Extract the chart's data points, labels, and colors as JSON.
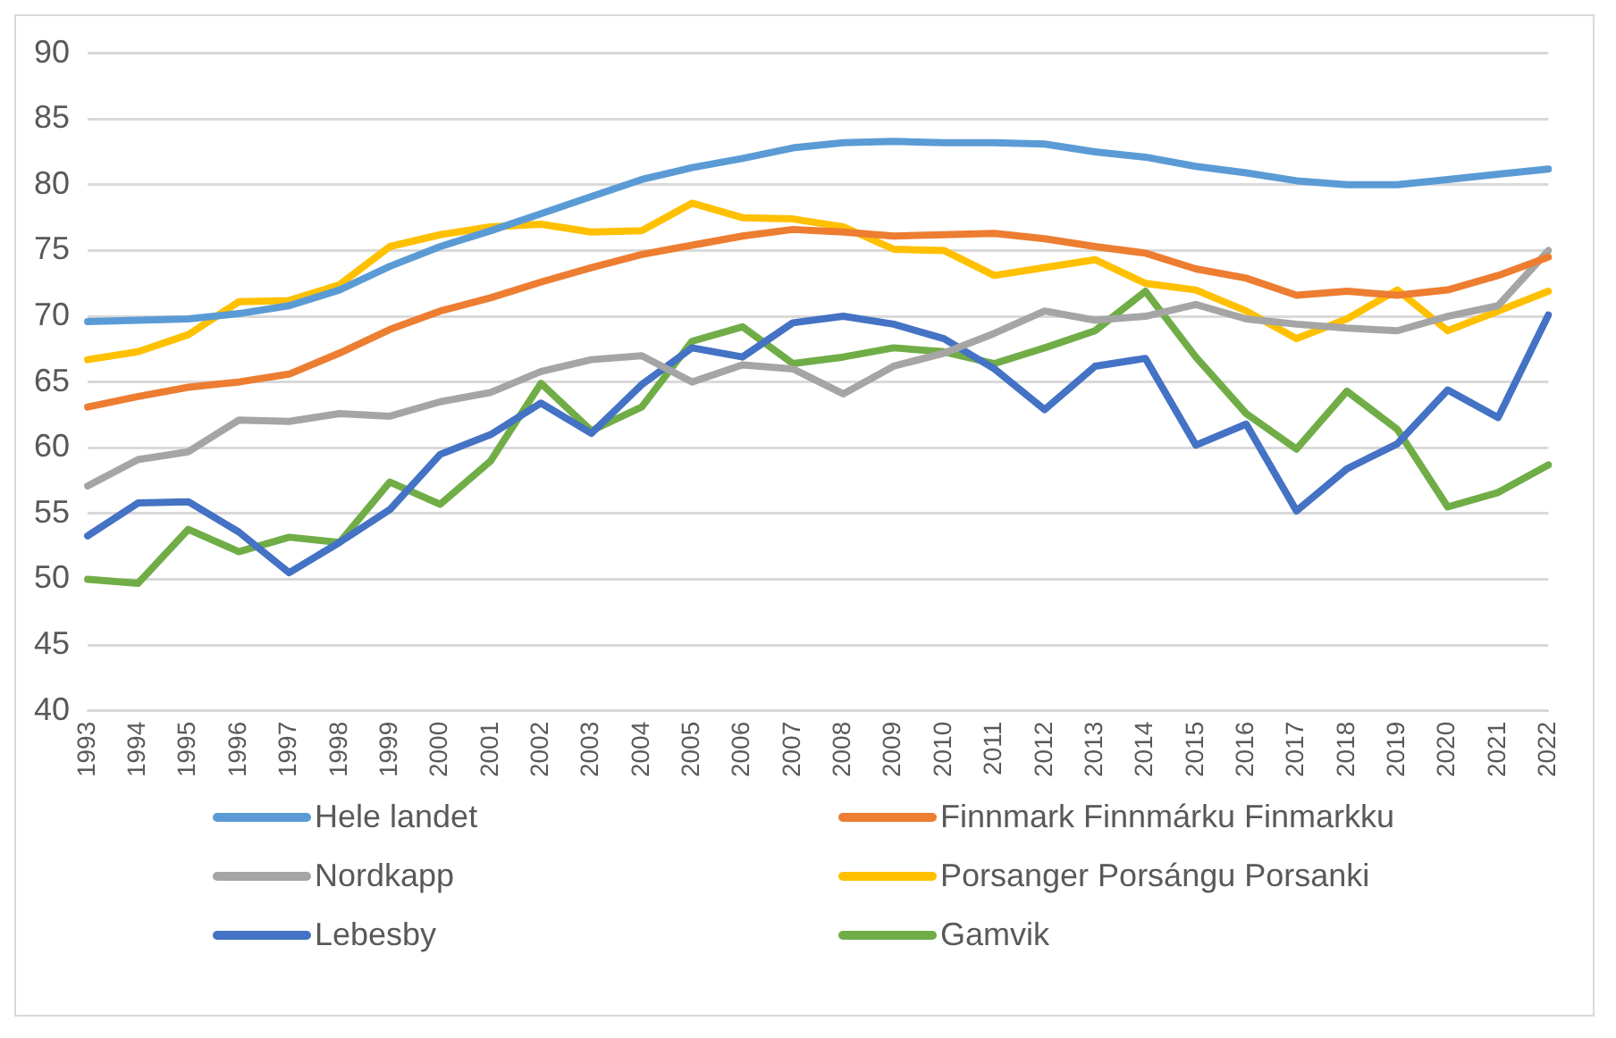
{
  "chart_data": {
    "type": "line",
    "categories": [
      "1993",
      "1994",
      "1995",
      "1996",
      "1997",
      "1998",
      "1999",
      "2000",
      "2001",
      "2002",
      "2003",
      "2004",
      "2005",
      "2006",
      "2007",
      "2008",
      "2009",
      "2010",
      "2011",
      "2012",
      "2013",
      "2014",
      "2015",
      "2016",
      "2017",
      "2018",
      "2019",
      "2020",
      "2021",
      "2022"
    ],
    "series": [
      {
        "name": "Hele landet",
        "color": "#5b9bd5",
        "values": [
          69.6,
          69.7,
          69.8,
          70.2,
          70.8,
          72.0,
          73.8,
          75.3,
          76.5,
          77.8,
          79.1,
          80.4,
          81.3,
          82.0,
          82.8,
          83.2,
          83.3,
          83.2,
          83.2,
          83.1,
          82.5,
          82.1,
          81.4,
          80.9,
          80.3,
          80.0,
          80.0,
          80.4,
          80.8,
          81.2
        ]
      },
      {
        "name": "Finnmark Finnmárku Finmarkku",
        "color": "#ed7d31",
        "values": [
          63.1,
          63.9,
          64.6,
          65.0,
          65.6,
          67.2,
          69.0,
          70.4,
          71.4,
          72.6,
          73.7,
          74.7,
          75.4,
          76.1,
          76.6,
          76.4,
          76.1,
          76.2,
          76.3,
          75.9,
          75.3,
          74.8,
          73.6,
          72.9,
          71.6,
          71.9,
          71.6,
          72.0,
          73.1,
          74.5
        ]
      },
      {
        "name": "Nordkapp",
        "color": "#a5a5a5",
        "values": [
          57.1,
          59.1,
          59.7,
          62.1,
          62.0,
          62.6,
          62.4,
          63.5,
          64.2,
          65.8,
          66.7,
          67.0,
          65.0,
          66.3,
          66.0,
          64.1,
          66.2,
          67.2,
          68.7,
          70.4,
          69.7,
          70.0,
          70.9,
          69.8,
          69.4,
          69.1,
          68.9,
          70.0,
          70.8,
          75.0
        ]
      },
      {
        "name": "Porsanger Porsángu Porsanki",
        "color": "#ffc000",
        "values": [
          66.7,
          67.3,
          68.6,
          71.1,
          71.2,
          72.4,
          75.3,
          76.2,
          76.8,
          77.0,
          76.4,
          76.5,
          78.6,
          77.5,
          77.4,
          76.8,
          75.1,
          75.0,
          73.1,
          73.7,
          74.3,
          72.5,
          72.0,
          70.4,
          68.3,
          69.8,
          72.0,
          68.9,
          70.4,
          71.9
        ]
      },
      {
        "name": "Lebesby",
        "color": "#4472c4",
        "values": [
          53.3,
          55.8,
          55.9,
          53.6,
          50.5,
          52.8,
          55.3,
          59.5,
          61.0,
          63.4,
          61.1,
          64.8,
          67.6,
          66.9,
          69.5,
          70.0,
          69.4,
          68.3,
          66.0,
          62.9,
          66.2,
          66.8,
          60.2,
          61.8,
          55.2,
          58.4,
          60.3,
          64.4,
          62.3,
          70.1
        ]
      },
      {
        "name": "Gamvik",
        "color": "#70ad47",
        "values": [
          50.0,
          49.7,
          53.8,
          52.1,
          53.2,
          52.8,
          57.4,
          55.7,
          59.0,
          64.9,
          61.3,
          63.1,
          68.1,
          69.2,
          66.4,
          66.9,
          67.6,
          67.3,
          66.4,
          67.6,
          68.9,
          71.9,
          66.9,
          62.6,
          59.9,
          64.3,
          61.4,
          55.5,
          56.6,
          58.7
        ]
      }
    ],
    "ylim": [
      40,
      90
    ],
    "yticks": [
      40,
      45,
      50,
      55,
      60,
      65,
      70,
      75,
      80,
      85,
      90
    ],
    "grid": "y",
    "legend": "bottom",
    "marker": "none",
    "line_style": "solid"
  }
}
